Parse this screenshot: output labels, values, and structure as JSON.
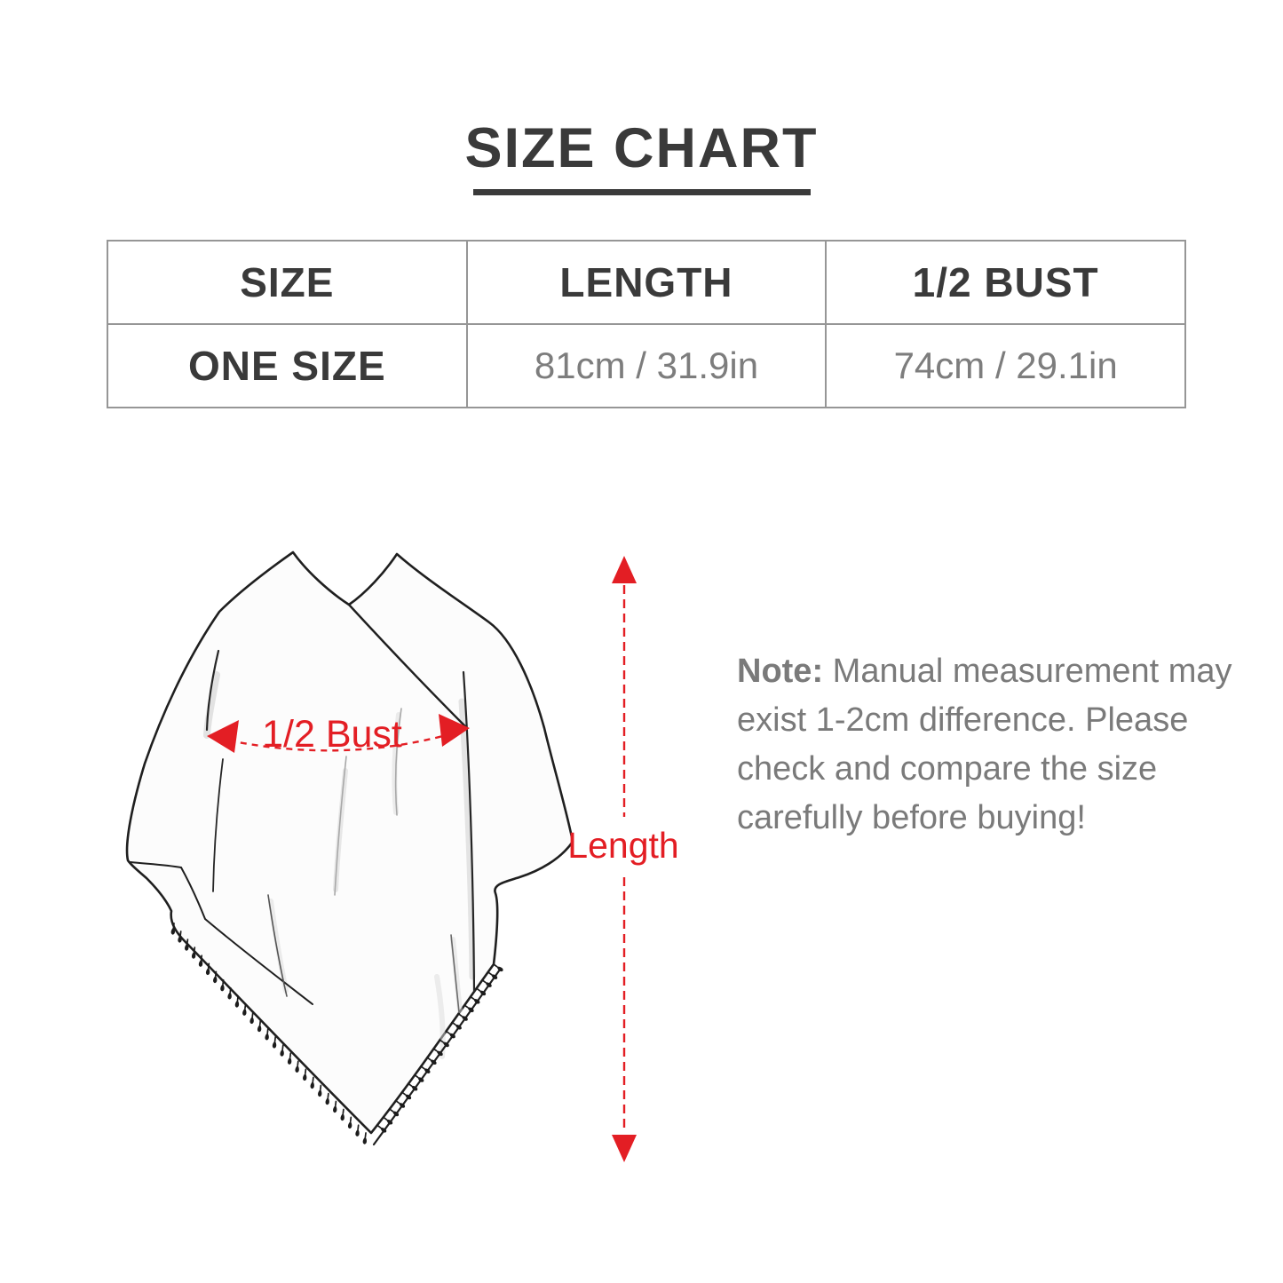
{
  "title": {
    "text": "SIZE CHART"
  },
  "size_table": {
    "columns": [
      "SIZE",
      "LENGTH",
      "1/2 BUST"
    ],
    "rows": [
      {
        "size": "ONE SIZE",
        "length": "81cm / 31.9in",
        "half_bust": "74cm / 29.1in"
      }
    ]
  },
  "diagram": {
    "type": "poncho-line-drawing-with-measurements",
    "labels": {
      "half_bust": "1/2 Bust",
      "length": "Length"
    },
    "annotation_color": "#e31e24"
  },
  "note": {
    "label": "Note:",
    "text": " Manual measurement may exist 1-2cm difference. Please check and compare the size carefully before buying!"
  },
  "colors": {
    "heading_text": "#3a3a3a",
    "muted_text": "#7a7a7a",
    "table_border": "#969696",
    "annotation_red": "#e31e24"
  }
}
